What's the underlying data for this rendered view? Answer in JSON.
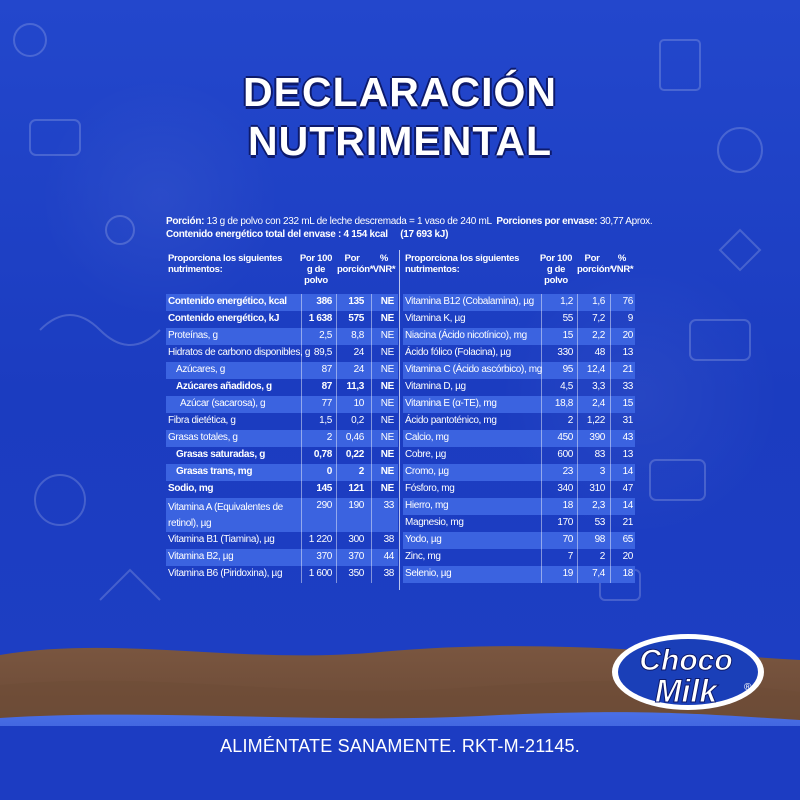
{
  "title": {
    "line1": "DECLARACIÓN",
    "line2": "NUTRIMENTAL"
  },
  "serving": {
    "portion_label": "Porción:",
    "portion_text": "13 g de polvo con 232 mL de leche descremada = 1 vaso de 240 mL",
    "portions_label": "Porciones por envase:",
    "portions_value": "30,77 Aprox.",
    "energy_label": "Contenido energético total del envase :",
    "energy_kcal": "4 154 kcal",
    "energy_kj": "(17 693 kJ)"
  },
  "headers": {
    "name": "Proporciona los siguientes nutrimentos:",
    "per100": "Por 100 g de polvo",
    "portion": "Por porción*",
    "vnr": "% VNR*"
  },
  "left_rows": [
    {
      "name": "Contenido energético, kcal",
      "p100": "386",
      "por": "135",
      "vnr": "NE",
      "bold": true
    },
    {
      "name": "Contenido energético, kJ",
      "p100": "1 638",
      "por": "575",
      "vnr": "NE",
      "bold": true
    },
    {
      "name": "Proteínas, g",
      "p100": "2,5",
      "por": "8,8",
      "vnr": "NE"
    },
    {
      "name": "Hidratos de carbono disponibles, g",
      "p100": "89,5",
      "por": "24",
      "vnr": "NE"
    },
    {
      "name": "Azúcares, g",
      "p100": "87",
      "por": "24",
      "vnr": "NE",
      "indent": 1
    },
    {
      "name": "Azúcares añadidos, g",
      "p100": "87",
      "por": "11,3",
      "vnr": "NE",
      "bold": true,
      "indent": 1
    },
    {
      "name": "Azúcar (sacarosa), g",
      "p100": "77",
      "por": "10",
      "vnr": "NE",
      "indent": 2
    },
    {
      "name": "Fibra dietética, g",
      "p100": "1,5",
      "por": "0,2",
      "vnr": "NE"
    },
    {
      "name": "Grasas totales, g",
      "p100": "2",
      "por": "0,46",
      "vnr": "NE"
    },
    {
      "name": "Grasas saturadas, g",
      "p100": "0,78",
      "por": "0,22",
      "vnr": "NE",
      "bold": true,
      "indent": 1
    },
    {
      "name": "Grasas trans, mg",
      "p100": "0",
      "por": "2",
      "vnr": "NE",
      "bold": true,
      "indent": 1
    },
    {
      "name": "Sodio, mg",
      "p100": "145",
      "por": "121",
      "vnr": "NE",
      "bold": true
    },
    {
      "name": "Vitamina A (Equivalentes de retinol), µg",
      "p100": "290",
      "por": "190",
      "vnr": "33",
      "tall": true
    },
    {
      "name": "Vitamina B1 (Tiamina), µg",
      "p100": "1 220",
      "por": "300",
      "vnr": "38"
    },
    {
      "name": "Vitamina B2, µg",
      "p100": "370",
      "por": "370",
      "vnr": "44"
    },
    {
      "name": "Vitamina B6 (Piridoxina), µg",
      "p100": "1 600",
      "por": "350",
      "vnr": "38"
    }
  ],
  "right_rows": [
    {
      "name": "Vitamina B12 (Cobalamina), µg",
      "p100": "1,2",
      "por": "1,6",
      "vnr": "76"
    },
    {
      "name": "Vitamina K, µg",
      "p100": "55",
      "por": "7,2",
      "vnr": "9"
    },
    {
      "name": "Niacina (Ácido nicotínico), mg",
      "p100": "15",
      "por": "2,2",
      "vnr": "20"
    },
    {
      "name": "Ácido fólico (Folacina), µg",
      "p100": "330",
      "por": "48",
      "vnr": "13"
    },
    {
      "name": "Vitamina C (Ácido ascórbico), mg",
      "p100": "95",
      "por": "12,4",
      "vnr": "21"
    },
    {
      "name": "Vitamina D, µg",
      "p100": "4,5",
      "por": "3,3",
      "vnr": "33"
    },
    {
      "name": "Vitamina E (α-TE), mg",
      "p100": "18,8",
      "por": "2,4",
      "vnr": "15"
    },
    {
      "name": "Ácido pantoténico, mg",
      "p100": "2",
      "por": "1,22",
      "vnr": "31"
    },
    {
      "name": "Calcio, mg",
      "p100": "450",
      "por": "390",
      "vnr": "43"
    },
    {
      "name": "Cobre, µg",
      "p100": "600",
      "por": "83",
      "vnr": "13"
    },
    {
      "name": "Cromo, µg",
      "p100": "23",
      "por": "3",
      "vnr": "14"
    },
    {
      "name": "Fósforo, mg",
      "p100": "340",
      "por": "310",
      "vnr": "47"
    },
    {
      "name": "Hierro, mg",
      "p100": "18",
      "por": "2,3",
      "vnr": "14"
    },
    {
      "name": "Magnesio, mg",
      "p100": "170",
      "por": "53",
      "vnr": "21"
    },
    {
      "name": "Yodo, µg",
      "p100": "70",
      "por": "98",
      "vnr": "65"
    },
    {
      "name": "Zinc, mg",
      "p100": "7",
      "por": "2",
      "vnr": "20"
    },
    {
      "name": "Selenio, µg",
      "p100": "19",
      "por": "7,4",
      "vnr": "18"
    }
  ],
  "logo": {
    "line1": "Choco",
    "line2": "Milk",
    "reg": "®"
  },
  "footer": "ALIMÉNTATE SANAMENTE. RKT-M-21145.",
  "colors": {
    "background": "#1f3fc4",
    "stripe": "#3b63e0",
    "chocolate": "#6b4a35",
    "logo_blue": "#1a3fb8"
  }
}
